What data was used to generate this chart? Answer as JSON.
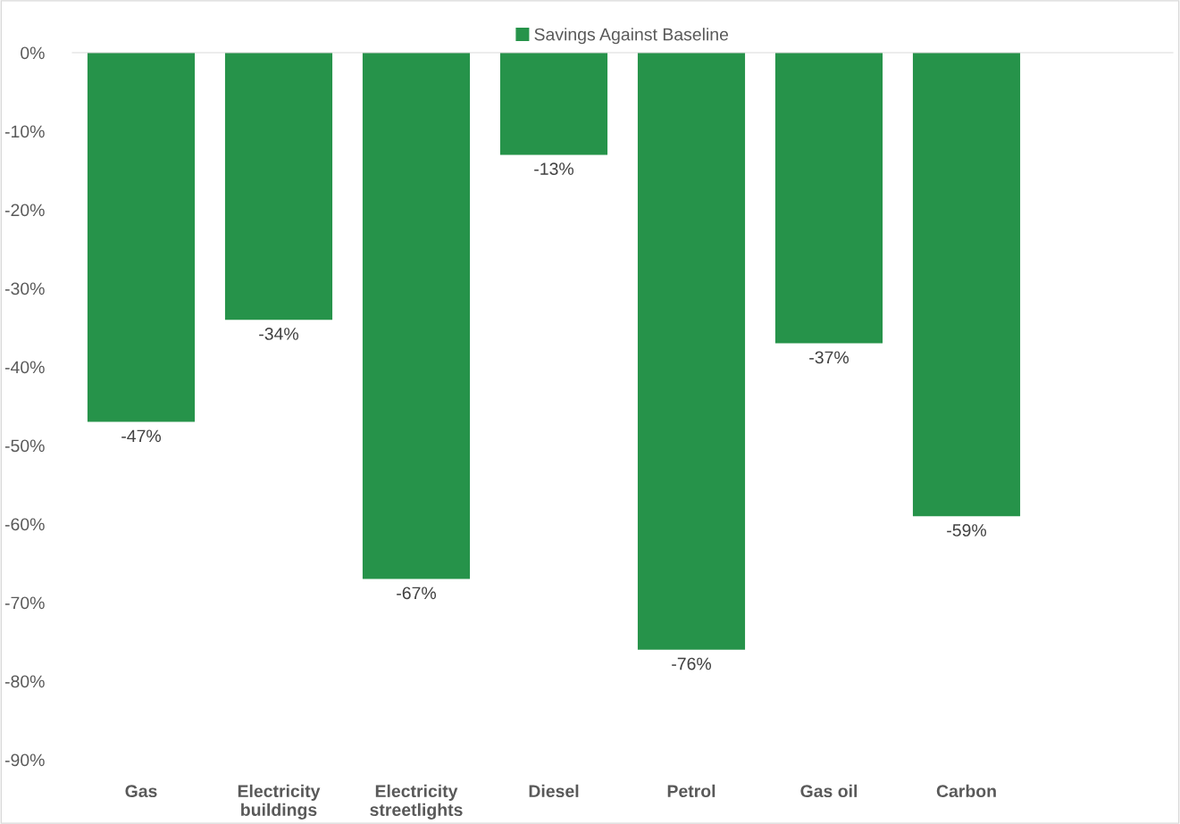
{
  "chart_data": {
    "type": "bar",
    "categories": [
      "Gas",
      "Electricity\nbuildings",
      "Electricity\nstreetlights",
      "Diesel",
      "Petrol",
      "Gas oil",
      "Carbon"
    ],
    "series": [
      {
        "name": "Savings Against Baseline",
        "color": "#26934a",
        "values": [
          -47,
          -34,
          -67,
          -13,
          -76,
          -37,
          -59
        ],
        "value_labels": [
          "-47%",
          "-34%",
          "-67%",
          "-13%",
          "-76%",
          "-37%",
          "-59%"
        ]
      }
    ],
    "ylim": [
      -90,
      0
    ],
    "yticks": [
      {
        "value": 0,
        "label": "0%"
      },
      {
        "value": -10,
        "label": "-10%"
      },
      {
        "value": -20,
        "label": "-20%"
      },
      {
        "value": -30,
        "label": "-30%"
      },
      {
        "value": -40,
        "label": "-40%"
      },
      {
        "value": -50,
        "label": "-50%"
      },
      {
        "value": -60,
        "label": "-60%"
      },
      {
        "value": -70,
        "label": "-70%"
      },
      {
        "value": -80,
        "label": "-80%"
      },
      {
        "value": -90,
        "label": "-90%"
      }
    ],
    "grid": false,
    "legend": "top"
  }
}
